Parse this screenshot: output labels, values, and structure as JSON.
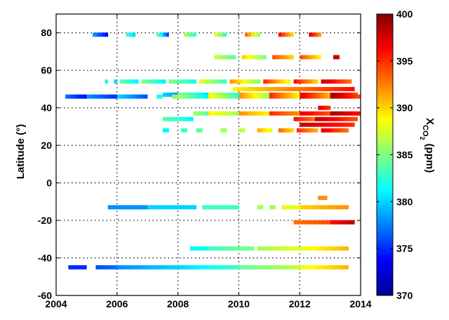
{
  "chart_data": {
    "type": "heatmap",
    "title": "",
    "xlabel": "",
    "ylabel": "Latitude (°)",
    "xlim": [
      2004,
      2014
    ],
    "ylim": [
      -60,
      90
    ],
    "x_ticks": [
      2004,
      2006,
      2008,
      2010,
      2012,
      2014
    ],
    "y_ticks": [
      -60,
      -40,
      -20,
      0,
      20,
      40,
      60,
      80
    ],
    "grid": true,
    "colorbar": {
      "label_main": "X",
      "label_sub": "CO",
      "label_subsub": "2",
      "label_unit": "(ppm)",
      "range": [
        370,
        400
      ],
      "ticks": [
        370,
        375,
        380,
        385,
        390,
        395,
        400
      ],
      "colormap": "jet"
    },
    "stations": [
      {
        "lat": 79,
        "segments": [
          {
            "start": 2005.2,
            "end": 2005.7,
            "v0": 378,
            "v1": 374
          },
          {
            "start": 2006.3,
            "end": 2006.6,
            "v0": 383,
            "v1": 380
          },
          {
            "start": 2007.3,
            "end": 2007.7,
            "v0": 384,
            "v1": 376
          },
          {
            "start": 2008.2,
            "end": 2008.6,
            "v0": 386,
            "v1": 383
          },
          {
            "start": 2009.2,
            "end": 2009.6,
            "v0": 388,
            "v1": 383
          },
          {
            "start": 2010.2,
            "end": 2010.7,
            "v0": 393,
            "v1": 386
          },
          {
            "start": 2011.3,
            "end": 2011.8,
            "v0": 396,
            "v1": 390
          },
          {
            "start": 2012.3,
            "end": 2012.7,
            "v0": 397,
            "v1": 392
          }
        ]
      },
      {
        "lat": 67,
        "segments": [
          {
            "start": 2009.2,
            "end": 2009.9,
            "v0": 387,
            "v1": 384
          },
          {
            "start": 2010.1,
            "end": 2010.9,
            "v0": 390,
            "v1": 385
          },
          {
            "start": 2011.1,
            "end": 2011.8,
            "v0": 394,
            "v1": 390
          },
          {
            "start": 2012.0,
            "end": 2012.7,
            "v0": 394,
            "v1": 389
          },
          {
            "start": 2013.1,
            "end": 2013.3,
            "v0": 398,
            "v1": 398
          }
        ]
      },
      {
        "lat": 54,
        "segments": [
          {
            "start": 2005.6,
            "end": 2005.7,
            "v0": 382,
            "v1": 382
          },
          {
            "start": 2005.9,
            "end": 2006.0,
            "v0": 380,
            "v1": 380
          },
          {
            "start": 2006.1,
            "end": 2006.7,
            "v0": 384,
            "v1": 381
          },
          {
            "start": 2006.8,
            "end": 2007.6,
            "v0": 385,
            "v1": 381
          },
          {
            "start": 2007.7,
            "end": 2008.6,
            "v0": 385,
            "v1": 382
          },
          {
            "start": 2008.7,
            "end": 2009.6,
            "v0": 388,
            "v1": 383
          },
          {
            "start": 2009.7,
            "end": 2010.7,
            "v0": 392,
            "v1": 385
          },
          {
            "start": 2010.8,
            "end": 2011.7,
            "v0": 395,
            "v1": 388
          },
          {
            "start": 2011.8,
            "end": 2012.6,
            "v0": 396,
            "v1": 390
          },
          {
            "start": 2012.7,
            "end": 2013.7,
            "v0": 398,
            "v1": 393
          }
        ]
      },
      {
        "lat": 50,
        "segments": [
          {
            "start": 2009.8,
            "end": 2013.8,
            "v0": 389,
            "v1": 396
          }
        ]
      },
      {
        "lat": 47,
        "segments": [
          {
            "start": 2007.5,
            "end": 2008.0,
            "v0": 380,
            "v1": 378
          },
          {
            "start": 2008.0,
            "end": 2009.0,
            "v0": 385,
            "v1": 380
          },
          {
            "start": 2009.0,
            "end": 2010.0,
            "v0": 388,
            "v1": 382
          },
          {
            "start": 2010.0,
            "end": 2011.0,
            "v0": 392,
            "v1": 386
          },
          {
            "start": 2011.0,
            "end": 2012.0,
            "v0": 395,
            "v1": 389
          },
          {
            "start": 2012.0,
            "end": 2013.0,
            "v0": 397,
            "v1": 391
          },
          {
            "start": 2013.0,
            "end": 2013.9,
            "v0": 399,
            "v1": 394
          }
        ]
      },
      {
        "lat": 46,
        "segments": [
          {
            "start": 2004.3,
            "end": 2005.0,
            "v0": 377,
            "v1": 374
          },
          {
            "start": 2005.0,
            "end": 2006.0,
            "v0": 378,
            "v1": 375
          },
          {
            "start": 2006.0,
            "end": 2007.0,
            "v0": 380,
            "v1": 376
          },
          {
            "start": 2007.3,
            "end": 2007.5,
            "v0": 382,
            "v1": 382
          },
          {
            "start": 2007.8,
            "end": 2008.0,
            "v0": 385,
            "v1": 385
          },
          {
            "start": 2008.0,
            "end": 2009.0,
            "v0": 386,
            "v1": 381
          },
          {
            "start": 2009.0,
            "end": 2010.0,
            "v0": 389,
            "v1": 383
          },
          {
            "start": 2010.0,
            "end": 2011.0,
            "v0": 392,
            "v1": 386
          },
          {
            "start": 2011.0,
            "end": 2012.0,
            "v0": 395,
            "v1": 389
          },
          {
            "start": 2012.0,
            "end": 2013.0,
            "v0": 397,
            "v1": 391
          },
          {
            "start": 2013.0,
            "end": 2014.0,
            "v0": 399,
            "v1": 394
          }
        ]
      },
      {
        "lat": 40,
        "segments": [
          {
            "start": 2012.6,
            "end": 2013.0,
            "v0": 397,
            "v1": 395
          }
        ]
      },
      {
        "lat": 37,
        "segments": [
          {
            "start": 2008.5,
            "end": 2009.0,
            "v0": 386,
            "v1": 384
          },
          {
            "start": 2009.0,
            "end": 2010.0,
            "v0": 389,
            "v1": 386
          },
          {
            "start": 2010.0,
            "end": 2011.0,
            "v0": 392,
            "v1": 389
          },
          {
            "start": 2011.0,
            "end": 2012.0,
            "v0": 395,
            "v1": 392
          },
          {
            "start": 2012.0,
            "end": 2013.0,
            "v0": 397,
            "v1": 394
          },
          {
            "start": 2013.0,
            "end": 2014.0,
            "v0": 399,
            "v1": 396
          }
        ]
      },
      {
        "lat": 34,
        "segments": [
          {
            "start": 2007.5,
            "end": 2008.5,
            "v0": 384,
            "v1": 381
          },
          {
            "start": 2011.8,
            "end": 2012.5,
            "v0": 396,
            "v1": 393
          },
          {
            "start": 2012.5,
            "end": 2013.9,
            "v0": 398,
            "v1": 394
          }
        ]
      },
      {
        "lat": 31,
        "segments": [
          {
            "start": 2012.0,
            "end": 2013.8,
            "v0": 398,
            "v1": 395
          }
        ]
      },
      {
        "lat": 28,
        "segments": [
          {
            "start": 2007.5,
            "end": 2007.7,
            "v0": 381,
            "v1": 381
          },
          {
            "start": 2008.1,
            "end": 2008.3,
            "v0": 383,
            "v1": 383
          },
          {
            "start": 2008.6,
            "end": 2008.8,
            "v0": 384,
            "v1": 384
          },
          {
            "start": 2009.4,
            "end": 2009.6,
            "v0": 386,
            "v1": 386
          },
          {
            "start": 2010.0,
            "end": 2010.2,
            "v0": 387,
            "v1": 387
          },
          {
            "start": 2010.6,
            "end": 2011.1,
            "v0": 391,
            "v1": 388
          },
          {
            "start": 2011.3,
            "end": 2011.8,
            "v0": 393,
            "v1": 390
          },
          {
            "start": 2011.9,
            "end": 2012.6,
            "v0": 395,
            "v1": 391
          },
          {
            "start": 2012.7,
            "end": 2013.6,
            "v0": 397,
            "v1": 393
          }
        ]
      },
      {
        "lat": -8,
        "segments": [
          {
            "start": 2012.6,
            "end": 2012.9,
            "v0": 392,
            "v1": 392
          }
        ]
      },
      {
        "lat": -13,
        "segments": [
          {
            "start": 2005.7,
            "end": 2007.0,
            "v0": 378,
            "v1": 378
          },
          {
            "start": 2007.0,
            "end": 2008.6,
            "v0": 380,
            "v1": 380
          },
          {
            "start": 2008.8,
            "end": 2010.0,
            "v0": 383,
            "v1": 383
          },
          {
            "start": 2010.6,
            "end": 2010.8,
            "v0": 386,
            "v1": 386
          },
          {
            "start": 2011.0,
            "end": 2011.2,
            "v0": 386,
            "v1": 386
          },
          {
            "start": 2011.4,
            "end": 2012.0,
            "v0": 388,
            "v1": 388
          },
          {
            "start": 2012.0,
            "end": 2013.6,
            "v0": 390,
            "v1": 392
          }
        ]
      },
      {
        "lat": -21,
        "segments": [
          {
            "start": 2011.8,
            "end": 2013.0,
            "v0": 393,
            "v1": 394
          },
          {
            "start": 2013.0,
            "end": 2013.8,
            "v0": 396,
            "v1": 398
          }
        ]
      },
      {
        "lat": -35,
        "segments": [
          {
            "start": 2008.4,
            "end": 2009.0,
            "v0": 381,
            "v1": 382
          },
          {
            "start": 2009.0,
            "end": 2010.5,
            "v0": 383,
            "v1": 385
          },
          {
            "start": 2010.6,
            "end": 2012.0,
            "v0": 386,
            "v1": 388
          },
          {
            "start": 2012.0,
            "end": 2013.6,
            "v0": 388,
            "v1": 391
          }
        ]
      },
      {
        "lat": -45,
        "segments": [
          {
            "start": 2004.4,
            "end": 2005.0,
            "v0": 375,
            "v1": 375
          },
          {
            "start": 2005.3,
            "end": 2006.0,
            "v0": 376,
            "v1": 377
          },
          {
            "start": 2006.0,
            "end": 2008.0,
            "v0": 378,
            "v1": 380
          },
          {
            "start": 2008.0,
            "end": 2010.0,
            "v0": 380,
            "v1": 383
          },
          {
            "start": 2010.0,
            "end": 2012.0,
            "v0": 384,
            "v1": 387
          },
          {
            "start": 2012.0,
            "end": 2013.6,
            "v0": 388,
            "v1": 391
          }
        ]
      }
    ]
  }
}
